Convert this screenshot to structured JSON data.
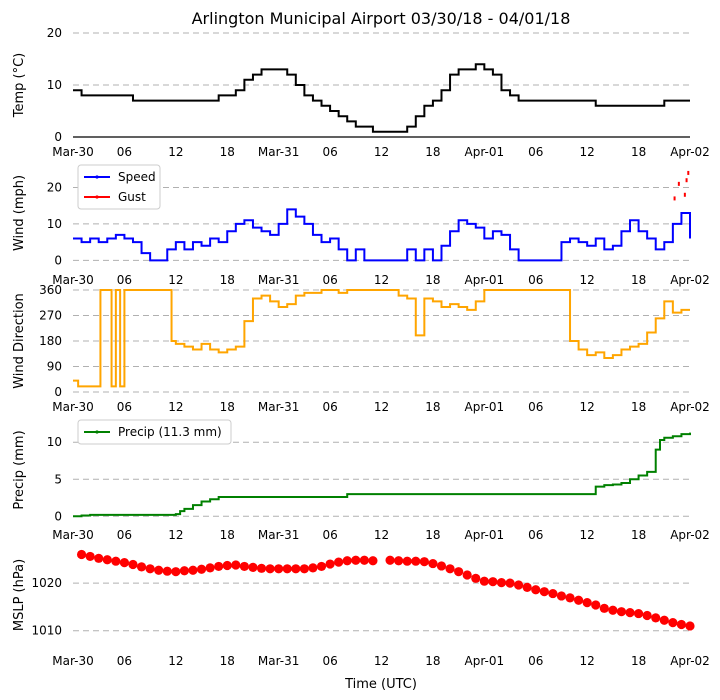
{
  "chart_data": {
    "title": "Arlington Municipal Airport 03/30/18 - 04/01/18",
    "xlabel": "Time (UTC)",
    "x_units": "hours since 2018-03-30 00:00 UTC",
    "xlim": [
      0,
      72
    ],
    "x_ticks": [
      0,
      6,
      12,
      18,
      24,
      30,
      36,
      42,
      48,
      54,
      60,
      66,
      72
    ],
    "x_tick_labels": [
      "Mar-30",
      "06",
      "12",
      "18",
      "Mar-31",
      "06",
      "12",
      "18",
      "Apr-01",
      "06",
      "12",
      "18",
      "Apr-02"
    ],
    "panels": [
      {
        "id": "temp",
        "type": "line",
        "ylabel": "Temp (°C)",
        "ylim": [
          0,
          20
        ],
        "yticks": [
          0,
          10,
          20
        ],
        "grid": true,
        "series": [
          {
            "name": "Temperature",
            "color": "#000000",
            "step": true,
            "x": [
              0,
              1,
              4,
              7,
              10,
              14,
              16,
              17,
              18,
              19,
              20,
              21,
              22,
              23,
              24,
              25,
              26,
              27,
              28,
              29,
              30,
              31,
              32,
              33,
              34,
              35,
              36,
              37,
              38,
              39,
              40,
              41,
              42,
              43,
              44,
              45,
              46,
              47,
              48,
              49,
              50,
              51,
              52,
              53,
              54,
              55,
              56,
              57,
              58,
              59,
              60,
              61,
              62,
              63,
              64,
              65,
              66,
              67,
              68,
              69,
              70,
              71,
              72
            ],
            "y": [
              9,
              8,
              8,
              7,
              7,
              7,
              7,
              8,
              8,
              9,
              11,
              12,
              13,
              13,
              13,
              12,
              10,
              8,
              7,
              6,
              5,
              4,
              3,
              2,
              2,
              1,
              1,
              1,
              1,
              2,
              4,
              6,
              7,
              9,
              12,
              13,
              13,
              14,
              13,
              12,
              9,
              8,
              7,
              7,
              7,
              7,
              7,
              7,
              7,
              7,
              7,
              6,
              6,
              6,
              6,
              6,
              6,
              6,
              6,
              7,
              7,
              7,
              7
            ]
          }
        ]
      },
      {
        "id": "wind",
        "type": "line",
        "ylabel": "Wind (mph)",
        "ylim": [
          -1,
          27
        ],
        "yticks": [
          0,
          10,
          20
        ],
        "grid": true,
        "legend": "top-left",
        "series": [
          {
            "name": "Speed",
            "color": "#0000ff",
            "step": true,
            "x": [
              0,
              1,
              2,
              3,
              4,
              5,
              6,
              7,
              8,
              9,
              10,
              11,
              12,
              13,
              14,
              15,
              16,
              17,
              18,
              19,
              20,
              21,
              22,
              23,
              24,
              25,
              26,
              27,
              28,
              29,
              30,
              31,
              32,
              33,
              34,
              35,
              36,
              37,
              38,
              39,
              40,
              41,
              42,
              43,
              44,
              45,
              46,
              47,
              48,
              49,
              50,
              51,
              52,
              53,
              54,
              55,
              56,
              57,
              58,
              59,
              60,
              61,
              62,
              63,
              64,
              65,
              66,
              67,
              68,
              69,
              70,
              71,
              72
            ],
            "y": [
              6,
              5,
              6,
              5,
              6,
              7,
              6,
              5,
              2,
              0,
              0,
              3,
              5,
              3,
              5,
              4,
              6,
              5,
              8,
              10,
              11,
              9,
              8,
              7,
              10,
              14,
              12,
              10,
              7,
              5,
              6,
              3,
              0,
              3,
              0,
              0,
              0,
              0,
              0,
              3,
              0,
              3,
              0,
              4,
              8,
              11,
              10,
              9,
              6,
              8,
              7,
              3,
              0,
              0,
              0,
              0,
              0,
              5,
              6,
              5,
              4,
              6,
              3,
              4,
              8,
              11,
              8,
              6,
              3,
              5,
              10,
              13,
              6
            ]
          },
          {
            "name": "Gust",
            "color": "#ff0000",
            "x": [
              70.2,
              70.7,
              71.4,
              71.6,
              71.8
            ],
            "y": [
              17,
              21,
              18,
              22,
              24
            ]
          }
        ]
      },
      {
        "id": "wdir",
        "type": "line",
        "ylabel": "Wind Direction",
        "ylim": [
          0,
          360
        ],
        "yticks": [
          0,
          90,
          180,
          270,
          360
        ],
        "grid": true,
        "series": [
          {
            "name": "Direction",
            "color": "#ffa500",
            "step": true,
            "x": [
              0,
              0.6,
              1,
              2,
              3,
              3.2,
              4,
              4.5,
              5,
              5.5,
              6,
              7,
              8,
              10,
              11,
              11.5,
              12,
              13,
              14,
              15,
              16,
              17,
              18,
              19,
              20,
              21,
              22,
              23,
              24,
              25,
              26,
              27,
              28,
              29,
              30,
              31,
              32,
              33,
              34,
              35,
              36,
              37,
              38,
              39,
              40,
              41,
              42,
              43,
              44,
              45,
              46,
              47,
              48,
              49,
              50,
              51,
              52,
              53,
              54,
              55,
              56,
              57,
              58,
              59,
              60,
              61,
              62,
              63,
              64,
              65,
              66,
              67,
              68,
              69,
              70,
              71,
              72
            ],
            "y": [
              40,
              20,
              20,
              20,
              20,
              360,
              360,
              20,
              360,
              20,
              360,
              360,
              360,
              360,
              360,
              180,
              170,
              160,
              150,
              170,
              150,
              140,
              150,
              160,
              250,
              330,
              340,
              320,
              300,
              310,
              340,
              350,
              350,
              360,
              360,
              350,
              360,
              360,
              360,
              360,
              360,
              360,
              340,
              330,
              200,
              330,
              320,
              300,
              310,
              300,
              290,
              320,
              360,
              360,
              360,
              360,
              360,
              360,
              360,
              360,
              360,
              360,
              180,
              150,
              130,
              140,
              120,
              130,
              150,
              160,
              170,
              210,
              260,
              320,
              280,
              290,
              290
            ]
          }
        ]
      },
      {
        "id": "precip",
        "type": "line",
        "ylabel": "Precip (mm)",
        "ylim": [
          -0.5,
          13
        ],
        "yticks": [
          0,
          5,
          10
        ],
        "grid": true,
        "legend": "top-left",
        "series": [
          {
            "name": "Precip (11.3 mm)",
            "color": "#008000",
            "step": true,
            "x": [
              0,
              1,
              2,
              4,
              6,
              8,
              10,
              12,
              12.5,
              13,
              14,
              15,
              16,
              17,
              18,
              20,
              24,
              30,
              32,
              36,
              40,
              44,
              48,
              52,
              56,
              60,
              61,
              62,
              63,
              64,
              65,
              66,
              67,
              68,
              68.5,
              69,
              70,
              71,
              72
            ],
            "y": [
              0,
              0.1,
              0.2,
              0.2,
              0.2,
              0.2,
              0.2,
              0.3,
              0.7,
              1.0,
              1.5,
              2.0,
              2.3,
              2.6,
              2.6,
              2.6,
              2.6,
              2.6,
              3.0,
              3.0,
              3.0,
              3.0,
              3.0,
              3.0,
              3.0,
              3.0,
              4.0,
              4.2,
              4.3,
              4.5,
              5.0,
              5.5,
              6.0,
              9.0,
              10.3,
              10.6,
              10.8,
              11.1,
              11.3
            ]
          }
        ]
      },
      {
        "id": "mslp",
        "type": "scatter",
        "ylabel": "MSLP (hPa)",
        "ylim": [
          1007,
          1028
        ],
        "yticks": [
          1010,
          1020
        ],
        "grid": true,
        "series": [
          {
            "name": "MSLP",
            "color": "#ff0000",
            "x": [
              1,
              2,
              3,
              4,
              5,
              6,
              7,
              8,
              9,
              10,
              11,
              12,
              13,
              14,
              15,
              16,
              17,
              18,
              19,
              20,
              21,
              22,
              23,
              24,
              25,
              26,
              27,
              28,
              29,
              30,
              31,
              32,
              33,
              34,
              35,
              37,
              38,
              39,
              40,
              41,
              42,
              43,
              44,
              45,
              46,
              47,
              48,
              49,
              50,
              51,
              52,
              53,
              54,
              55,
              56,
              57,
              58,
              59,
              60,
              61,
              62,
              63,
              64,
              65,
              66,
              67,
              68,
              69,
              70,
              71,
              72
            ],
            "y": [
              1026.0,
              1025.6,
              1025.2,
              1024.9,
              1024.6,
              1024.3,
              1023.9,
              1023.4,
              1023.0,
              1022.7,
              1022.5,
              1022.4,
              1022.6,
              1022.7,
              1022.9,
              1023.2,
              1023.5,
              1023.7,
              1023.8,
              1023.5,
              1023.3,
              1023.1,
              1023.0,
              1023.0,
              1023.0,
              1023.0,
              1023.0,
              1023.2,
              1023.5,
              1024.0,
              1024.4,
              1024.7,
              1024.8,
              1024.8,
              1024.7,
              1024.8,
              1024.7,
              1024.6,
              1024.6,
              1024.5,
              1024.1,
              1023.6,
              1023.0,
              1022.4,
              1021.7,
              1021.0,
              1020.4,
              1020.3,
              1020.1,
              1020.0,
              1019.6,
              1019.1,
              1018.6,
              1018.2,
              1017.8,
              1017.3,
              1016.9,
              1016.4,
              1015.9,
              1015.4,
              1014.7,
              1014.3,
              1014.0,
              1013.8,
              1013.6,
              1013.2,
              1012.7,
              1012.2,
              1011.7,
              1011.3,
              1011.0
            ]
          }
        ]
      }
    ]
  }
}
